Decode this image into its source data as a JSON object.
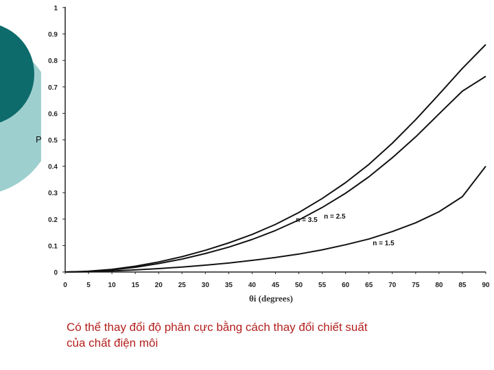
{
  "theme": {
    "circle_outer": "#9ecfcf",
    "circle_inner": "#0d6b6b",
    "caption_color": "#b3201d",
    "line_color": "#111111"
  },
  "chart_data": {
    "type": "line",
    "title": "",
    "xlabel": "θi (degrees)",
    "ylabel": "P",
    "xlim": [
      0,
      90
    ],
    "ylim": [
      0,
      1
    ],
    "x_ticks": [
      0,
      5,
      10,
      15,
      20,
      25,
      30,
      35,
      40,
      45,
      50,
      55,
      60,
      65,
      70,
      75,
      80,
      85,
      90
    ],
    "y_ticks": [
      0,
      0.1,
      0.2,
      0.3,
      0.4,
      0.5,
      0.6,
      0.7,
      0.8,
      0.9,
      1
    ],
    "y_tick_labels": [
      "0",
      "0.1",
      "0.2",
      "0.3",
      "0.4",
      "0.5",
      "0.6",
      "0.7",
      "0.8",
      "0.9",
      "1"
    ],
    "grid": false,
    "series": [
      {
        "name": "n = 3.5",
        "x": [
          0,
          5,
          10,
          15,
          20,
          25,
          30,
          35,
          40,
          45,
          50,
          55,
          60,
          65,
          70,
          75,
          80,
          85,
          90
        ],
        "y": [
          0,
          0.003,
          0.01,
          0.022,
          0.038,
          0.058,
          0.082,
          0.11,
          0.142,
          0.18,
          0.225,
          0.278,
          0.338,
          0.407,
          0.487,
          0.576,
          0.672,
          0.77,
          0.86
        ]
      },
      {
        "name": "n = 2.5",
        "x": [
          0,
          5,
          10,
          15,
          20,
          25,
          30,
          35,
          40,
          45,
          50,
          55,
          60,
          65,
          70,
          75,
          80,
          85,
          90
        ],
        "y": [
          0,
          0.002,
          0.008,
          0.018,
          0.032,
          0.049,
          0.07,
          0.094,
          0.123,
          0.157,
          0.197,
          0.244,
          0.298,
          0.36,
          0.432,
          0.511,
          0.598,
          0.684,
          0.74
        ]
      },
      {
        "name": "n = 1.5",
        "x": [
          0,
          5,
          10,
          15,
          20,
          25,
          30,
          35,
          40,
          45,
          50,
          55,
          60,
          65,
          70,
          75,
          80,
          85,
          90
        ],
        "y": [
          0,
          0.001,
          0.004,
          0.008,
          0.013,
          0.019,
          0.026,
          0.034,
          0.044,
          0.055,
          0.068,
          0.084,
          0.103,
          0.125,
          0.153,
          0.186,
          0.228,
          0.285,
          0.4
        ]
      }
    ]
  },
  "caption": {
    "line1": "Có thể thay đổi độ phân cực bằng cách thay đổi chiết suất",
    "line2": "của chất điện môi"
  }
}
